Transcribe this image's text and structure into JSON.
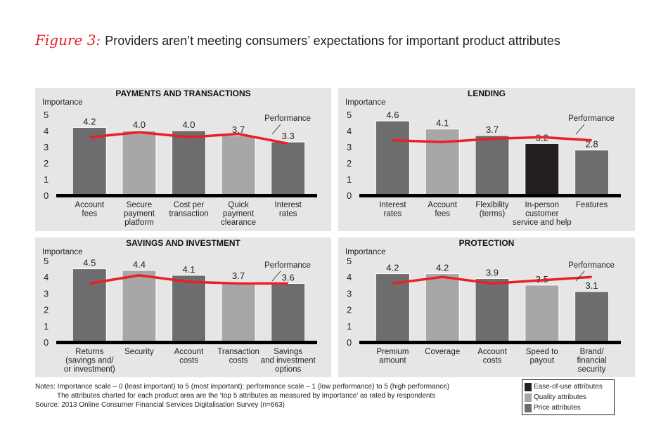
{
  "title": {
    "figure_label": "Figure 3:",
    "text": "Providers aren’t meeting consumers’ expectations for important product attributes"
  },
  "colors": {
    "panel_bg": "#e6e6e6",
    "ease_of_use": "#231f20",
    "quality": "#a7a7a9",
    "price": "#6d6d6f",
    "performance_line": "#e8202a",
    "figure_label": "#e8202a"
  },
  "chart_data": [
    {
      "type": "bar",
      "title": "PAYMENTS AND TRANSACTIONS",
      "ylabel": "Importance",
      "ylim": [
        0,
        5
      ],
      "yticks": [
        "0",
        "1",
        "2",
        "3",
        "4",
        "5"
      ],
      "categories": [
        "Account fees",
        "Secure payment platform",
        "Cost per transaction",
        "Quick payment clearance",
        "Interest rates"
      ],
      "category_lines": [
        [
          "Account",
          "fees"
        ],
        [
          "Secure",
          "payment",
          "platform"
        ],
        [
          "Cost per",
          "transaction"
        ],
        [
          "Quick",
          "payment",
          "clearance"
        ],
        [
          "Interest",
          "rates"
        ]
      ],
      "attribute_types": [
        "price",
        "quality",
        "price",
        "quality",
        "price"
      ],
      "series": [
        {
          "name": "Importance",
          "values": [
            4.2,
            4.0,
            4.0,
            3.7,
            3.3
          ],
          "labels": [
            "4.2",
            "4.0",
            "4.0",
            "3.7",
            "3.3"
          ]
        },
        {
          "name": "Performance",
          "values": [
            3.6,
            3.9,
            3.6,
            3.8,
            3.2
          ]
        }
      ],
      "annotation": "Performance"
    },
    {
      "type": "bar",
      "title": "LENDING",
      "ylabel": "Importance",
      "ylim": [
        0,
        5
      ],
      "yticks": [
        "0",
        "1",
        "2",
        "3",
        "4",
        "5"
      ],
      "categories": [
        "Interest rates",
        "Account fees",
        "Flexibility (terms)",
        "In-person customer service and help",
        "Features"
      ],
      "category_lines": [
        [
          "Interest",
          "rates"
        ],
        [
          "Account",
          "fees"
        ],
        [
          "Flexibility",
          "(terms)"
        ],
        [
          "In-person",
          "customer",
          "service and help"
        ],
        [
          "Features"
        ]
      ],
      "attribute_types": [
        "price",
        "quality",
        "price",
        "ease",
        "price"
      ],
      "series": [
        {
          "name": "Importance",
          "values": [
            4.6,
            4.1,
            3.7,
            3.2,
            2.8
          ],
          "labels": [
            "4.6",
            "4.1",
            "3.7",
            "3.2",
            "2.8"
          ]
        },
        {
          "name": "Performance",
          "values": [
            3.4,
            3.3,
            3.5,
            3.6,
            3.4
          ]
        }
      ],
      "annotation": "Performance"
    },
    {
      "type": "bar",
      "title": "SAVINGS AND INVESTMENT",
      "ylabel": "Importance",
      "ylim": [
        0,
        5
      ],
      "yticks": [
        "0",
        "1",
        "2",
        "3",
        "4",
        "5"
      ],
      "categories": [
        "Returns (savings and/ or investment)",
        "Security",
        "Account costs",
        "Transaction costs",
        "Savings and investment options"
      ],
      "category_lines": [
        [
          "Returns",
          "(savings and/",
          "or investment)"
        ],
        [
          "Security"
        ],
        [
          "Account",
          "costs"
        ],
        [
          "Transaction",
          "costs"
        ],
        [
          "Savings",
          "and investment",
          "options"
        ]
      ],
      "attribute_types": [
        "price",
        "quality",
        "price",
        "quality",
        "price"
      ],
      "series": [
        {
          "name": "Importance",
          "values": [
            4.5,
            4.4,
            4.1,
            3.7,
            3.6
          ],
          "labels": [
            "4.5",
            "4.4",
            "4.1",
            "3.7",
            "3.6"
          ]
        },
        {
          "name": "Performance",
          "values": [
            3.6,
            4.1,
            3.7,
            3.6,
            3.6
          ]
        }
      ],
      "annotation": "Performance"
    },
    {
      "type": "bar",
      "title": "PROTECTION",
      "ylabel": "Importance",
      "ylim": [
        0,
        5
      ],
      "yticks": [
        "0",
        "1",
        "2",
        "3",
        "4",
        "5"
      ],
      "categories": [
        "Premium amount",
        "Coverage",
        "Account costs",
        "Speed to payout",
        "Brand/ financial security"
      ],
      "category_lines": [
        [
          "Premium",
          "amount"
        ],
        [
          "Coverage"
        ],
        [
          "Account",
          "costs"
        ],
        [
          "Speed to",
          "payout"
        ],
        [
          "Brand/",
          "financial",
          "security"
        ]
      ],
      "attribute_types": [
        "price",
        "quality",
        "price",
        "quality",
        "price"
      ],
      "series": [
        {
          "name": "Importance",
          "values": [
            4.2,
            4.2,
            3.9,
            3.5,
            3.1
          ],
          "labels": [
            "4.2",
            "4.2",
            "3.9",
            "3.5",
            "3.1"
          ]
        },
        {
          "name": "Performance",
          "values": [
            3.6,
            4.0,
            3.6,
            3.8,
            4.0
          ]
        }
      ],
      "annotation": "Performance"
    }
  ],
  "legend": [
    {
      "key": "ease",
      "label": "Ease-of-use attributes"
    },
    {
      "key": "quality",
      "label": "Quality attributes"
    },
    {
      "key": "price",
      "label": "Price attributes"
    }
  ],
  "notes": {
    "line1": "Notes: Importance scale – 0 (least important) to 5 (most important); performance scale – 1 (low performance) to 5 (high performance)",
    "line2": "The attributes charted for each product area are the ‘top 5 attributes as measured by importance’ as rated by respondents",
    "source": "Source: 2013 Online Consumer Financial Services Digitalisation Survey (n=663)"
  }
}
